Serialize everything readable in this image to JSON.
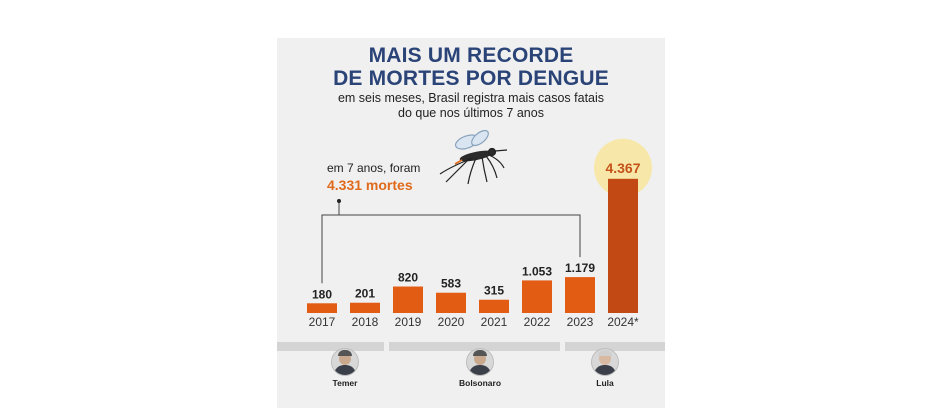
{
  "header": {
    "title_line1": "MAIS UM RECORDE",
    "title_line2": "DE MORTES POR DENGUE",
    "subtitle_line1": "em seis meses, Brasil registra mais casos fatais",
    "subtitle_line2": "do que nos últimos 7 anos"
  },
  "annotation": {
    "line1": "em 7 anos, foram",
    "line2": "4.331 mortes"
  },
  "chart_data": {
    "type": "bar",
    "title": "MAIS UM RECORDE DE MORTES POR DENGUE",
    "subtitle": "em seis meses, Brasil registra mais casos fatais do que nos últimos 7 anos",
    "categories": [
      "2017",
      "2018",
      "2019",
      "2020",
      "2021",
      "2022",
      "2023",
      "2024*"
    ],
    "values": [
      180,
      201,
      820,
      583,
      315,
      1053,
      1179,
      4367
    ],
    "value_labels": [
      "180",
      "201",
      "820",
      "583",
      "315",
      "1.053",
      "1.179",
      "4.367"
    ],
    "xlabel": "",
    "ylabel": "",
    "ylim": [
      0,
      4367
    ],
    "grid": false,
    "highlight_index": 7,
    "colors": {
      "bar": "#e35c13",
      "bar_highlight": "#c24914",
      "highlight_circle": "#f7e7a8",
      "bracket": "#444444"
    }
  },
  "presidents": [
    {
      "name": "Temer",
      "years": "2017–2018"
    },
    {
      "name": "Bolsonaro",
      "years": "2019–2022"
    },
    {
      "name": "Lula",
      "years": "2023–2024"
    }
  ],
  "colors": {
    "title": "#2b4478",
    "highlight_text": "#e06a1b",
    "card_bg": "#f0f0f0",
    "band": "#d4d4d4"
  }
}
